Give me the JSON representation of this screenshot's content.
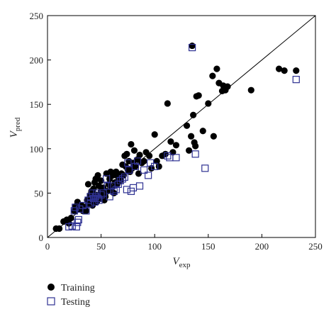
{
  "chart_data": {
    "type": "scatter",
    "xlabel": {
      "main": "V",
      "sub": "exp"
    },
    "ylabel": {
      "main": "V",
      "sub": "pred"
    },
    "xlim": [
      0,
      250
    ],
    "ylim": [
      0,
      250
    ],
    "xticks": [
      0,
      50,
      100,
      150,
      200,
      250
    ],
    "yticks": [
      0,
      50,
      100,
      150,
      200,
      250
    ],
    "grid": false,
    "reference_line": "y = x",
    "legend_position": "bottom-left, below plot",
    "series": [
      {
        "name": "Training",
        "marker": "filled-circle",
        "color": "#000000",
        "points": [
          [
            8,
            10
          ],
          [
            11,
            10
          ],
          [
            15,
            18
          ],
          [
            18,
            20
          ],
          [
            20,
            16
          ],
          [
            22,
            22
          ],
          [
            25,
            30
          ],
          [
            26,
            35
          ],
          [
            28,
            40
          ],
          [
            30,
            32
          ],
          [
            32,
            36
          ],
          [
            33,
            30
          ],
          [
            35,
            34
          ],
          [
            36,
            30
          ],
          [
            37,
            42
          ],
          [
            38,
            38
          ],
          [
            38,
            60
          ],
          [
            40,
            48
          ],
          [
            40,
            40
          ],
          [
            41,
            52
          ],
          [
            42,
            44
          ],
          [
            42,
            36
          ],
          [
            43,
            55
          ],
          [
            44,
            62
          ],
          [
            44,
            40
          ],
          [
            45,
            48
          ],
          [
            45,
            66
          ],
          [
            46,
            40
          ],
          [
            47,
            70
          ],
          [
            48,
            46
          ],
          [
            48,
            58
          ],
          [
            49,
            44
          ],
          [
            50,
            52
          ],
          [
            50,
            64
          ],
          [
            51,
            48
          ],
          [
            52,
            56
          ],
          [
            53,
            42
          ],
          [
            54,
            46
          ],
          [
            55,
            72
          ],
          [
            56,
            52
          ],
          [
            57,
            60
          ],
          [
            58,
            66
          ],
          [
            59,
            74
          ],
          [
            60,
            56
          ],
          [
            61,
            70
          ],
          [
            62,
            50
          ],
          [
            63,
            62
          ],
          [
            64,
            74
          ],
          [
            65,
            60
          ],
          [
            66,
            68
          ],
          [
            68,
            64
          ],
          [
            69,
            72
          ],
          [
            70,
            82
          ],
          [
            71,
            70
          ],
          [
            72,
            92
          ],
          [
            73,
            80
          ],
          [
            74,
            94
          ],
          [
            75,
            76
          ],
          [
            76,
            86
          ],
          [
            77,
            74
          ],
          [
            78,
            105
          ],
          [
            79,
            78
          ],
          [
            80,
            84
          ],
          [
            81,
            98
          ],
          [
            82,
            80
          ],
          [
            84,
            88
          ],
          [
            85,
            72
          ],
          [
            86,
            93
          ],
          [
            88,
            84
          ],
          [
            90,
            86
          ],
          [
            92,
            96
          ],
          [
            95,
            92
          ],
          [
            97,
            78
          ],
          [
            100,
            116
          ],
          [
            102,
            86
          ],
          [
            104,
            80
          ],
          [
            107,
            92
          ],
          [
            110,
            94
          ],
          [
            112,
            151
          ],
          [
            115,
            108
          ],
          [
            117,
            96
          ],
          [
            120,
            104
          ],
          [
            130,
            126
          ],
          [
            132,
            98
          ],
          [
            134,
            114
          ],
          [
            136,
            138
          ],
          [
            137,
            107
          ],
          [
            138,
            103
          ],
          [
            139,
            159
          ],
          [
            141,
            160
          ],
          [
            145,
            120
          ],
          [
            150,
            151
          ],
          [
            154,
            182
          ],
          [
            155,
            114
          ],
          [
            158,
            190
          ],
          [
            160,
            174
          ],
          [
            163,
            165
          ],
          [
            164,
            171
          ],
          [
            166,
            166
          ],
          [
            168,
            170
          ],
          [
            190,
            166
          ],
          [
            216,
            190
          ],
          [
            221,
            188
          ],
          [
            232,
            188
          ],
          [
            135,
            216
          ]
        ]
      },
      {
        "name": "Testing",
        "marker": "open-square",
        "color": "#2e3192",
        "points": [
          [
            20,
            12
          ],
          [
            23,
            13
          ],
          [
            25,
            30
          ],
          [
            26,
            34
          ],
          [
            27,
            12
          ],
          [
            28,
            17
          ],
          [
            29,
            20
          ],
          [
            30,
            32
          ],
          [
            33,
            36
          ],
          [
            36,
            30
          ],
          [
            38,
            42
          ],
          [
            40,
            46
          ],
          [
            40,
            38
          ],
          [
            42,
            50
          ],
          [
            43,
            44
          ],
          [
            44,
            40
          ],
          [
            45,
            46
          ],
          [
            46,
            50
          ],
          [
            47,
            44
          ],
          [
            48,
            42
          ],
          [
            50,
            48
          ],
          [
            52,
            50
          ],
          [
            55,
            66
          ],
          [
            56,
            58
          ],
          [
            58,
            46
          ],
          [
            60,
            58
          ],
          [
            62,
            52
          ],
          [
            64,
            54
          ],
          [
            66,
            60
          ],
          [
            68,
            64
          ],
          [
            70,
            66
          ],
          [
            72,
            68
          ],
          [
            74,
            54
          ],
          [
            75,
            84
          ],
          [
            76,
            76
          ],
          [
            78,
            52
          ],
          [
            80,
            56
          ],
          [
            82,
            80
          ],
          [
            84,
            86
          ],
          [
            86,
            58
          ],
          [
            90,
            76
          ],
          [
            94,
            70
          ],
          [
            96,
            84
          ],
          [
            100,
            80
          ],
          [
            112,
            92
          ],
          [
            114,
            90
          ],
          [
            120,
            90
          ],
          [
            138,
            94
          ],
          [
            147,
            78
          ],
          [
            135,
            214
          ],
          [
            232,
            178
          ]
        ]
      }
    ]
  },
  "legend": {
    "items": [
      {
        "label": "Training",
        "marker": "filled-circle"
      },
      {
        "label": "Testing",
        "marker": "open-square"
      }
    ]
  }
}
